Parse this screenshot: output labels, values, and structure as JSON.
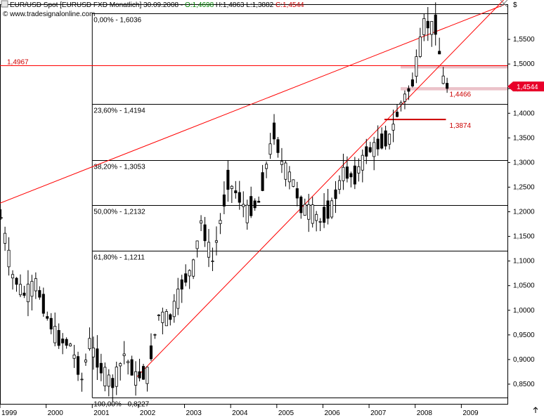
{
  "header": {
    "icon": "chart-window-icon",
    "parts": [
      {
        "text": "EUR/USD Spot [EURUSD FXD  Monatlich] 30.09.2008 - ",
        "color": "#000000"
      },
      {
        "text": "O:1,4698 ",
        "color": "#008000"
      },
      {
        "text": "H:1,4863 L:1,3882 ",
        "color": "#000000"
      },
      {
        "text": "C:1,4544",
        "color": "#cc0000"
      }
    ],
    "watermark": "© www.tradesignalonline.com"
  },
  "chart_data": {
    "type": "candlestick",
    "x_axis": {
      "labels": [
        "1999",
        "2000",
        "2001",
        "2002",
        "2003",
        "2004",
        "2005",
        "2006",
        "2007",
        "2008",
        "2009"
      ],
      "range": [
        "1999-01",
        "2009-12"
      ]
    },
    "y_axis": {
      "unit": "$",
      "labels": [
        "1,5500",
        "1,5000",
        "1,4500",
        "1,4000",
        "1,3500",
        "1,3000",
        "1,2500",
        "1,2000",
        "1,1500",
        "1,1000",
        "1,0500",
        "1,0000",
        "0,9500",
        "0,9000",
        "0,8500"
      ],
      "range": [
        0.81,
        1.62
      ]
    },
    "fibonacci": [
      {
        "label": "0,00% - 1,6036",
        "value": 1.6036
      },
      {
        "label": "23,60% - 1,4194",
        "value": 1.4194
      },
      {
        "label": "38,20% - 1,3053",
        "value": 1.3053
      },
      {
        "label": "50,00% - 1,2132",
        "value": 1.2132
      },
      {
        "label": "61,80% - 1,1211",
        "value": 1.1211
      },
      {
        "label": "100,00% - 0,8227",
        "value": 0.8227
      }
    ],
    "horizontal_level": {
      "label": "1,4967",
      "value": 1.4967
    },
    "last_price": {
      "label": "1,4544",
      "value": 1.4544
    },
    "annotations": [
      {
        "label": "1,4466",
        "value": 1.4466
      },
      {
        "label": "1,3874",
        "value": 1.3874
      }
    ],
    "trendlines": [
      {
        "from": {
          "date": "1999-01",
          "value": 1.2175
        },
        "to": {
          "date": "2009-12",
          "value": 1.62
        }
      },
      {
        "from": {
          "date": "2001-12",
          "value": 0.86
        },
        "to": {
          "date": "2009-12",
          "value": 1.63
        }
      }
    ],
    "shaded_zones": [
      [
        1.4466,
        1.453
      ],
      [
        1.491,
        1.498
      ]
    ],
    "support_segment": {
      "from": "2007-05",
      "to": "2008-09",
      "value": 1.3874
    },
    "candles_points": [
      [
        "1999-01",
        1.188
      ],
      [
        "1999-04",
        1.07
      ],
      [
        "1999-07",
        1.032
      ],
      [
        "1999-10",
        1.055
      ],
      [
        "2000-01",
        0.985
      ],
      [
        "2000-04",
        0.94
      ],
      [
        "2000-07",
        0.93
      ],
      [
        "2000-10",
        0.86
      ],
      [
        "2000-12",
        0.935
      ],
      [
        "2001-03",
        0.88
      ],
      [
        "2001-06",
        0.85
      ],
      [
        "2001-09",
        0.91
      ],
      [
        "2001-12",
        0.865
      ],
      [
        "2002-03",
        0.872
      ],
      [
        "2002-06",
        0.99
      ],
      [
        "2002-09",
        0.985
      ],
      [
        "2002-12",
        1.05
      ],
      [
        "2003-03",
        1.09
      ],
      [
        "2003-05",
        1.18
      ],
      [
        "2003-08",
        1.1
      ],
      [
        "2003-12",
        1.26
      ],
      [
        "2004-02",
        1.24
      ],
      [
        "2004-05",
        1.2
      ],
      [
        "2004-08",
        1.22
      ],
      [
        "2004-11",
        1.33
      ],
      [
        "2004-12",
        1.36
      ],
      [
        "2005-02",
        1.3
      ],
      [
        "2005-05",
        1.26
      ],
      [
        "2005-07",
        1.21
      ],
      [
        "2005-10",
        1.2
      ],
      [
        "2005-12",
        1.18
      ],
      [
        "2006-03",
        1.21
      ],
      [
        "2006-06",
        1.28
      ],
      [
        "2006-09",
        1.27
      ],
      [
        "2006-12",
        1.32
      ],
      [
        "2007-03",
        1.335
      ],
      [
        "2007-06",
        1.35
      ],
      [
        "2007-09",
        1.42
      ],
      [
        "2007-12",
        1.46
      ],
      [
        "2008-03",
        1.58
      ],
      [
        "2008-06",
        1.575
      ],
      [
        "2008-08",
        1.47
      ],
      [
        "2008-09",
        1.4544
      ]
    ]
  }
}
